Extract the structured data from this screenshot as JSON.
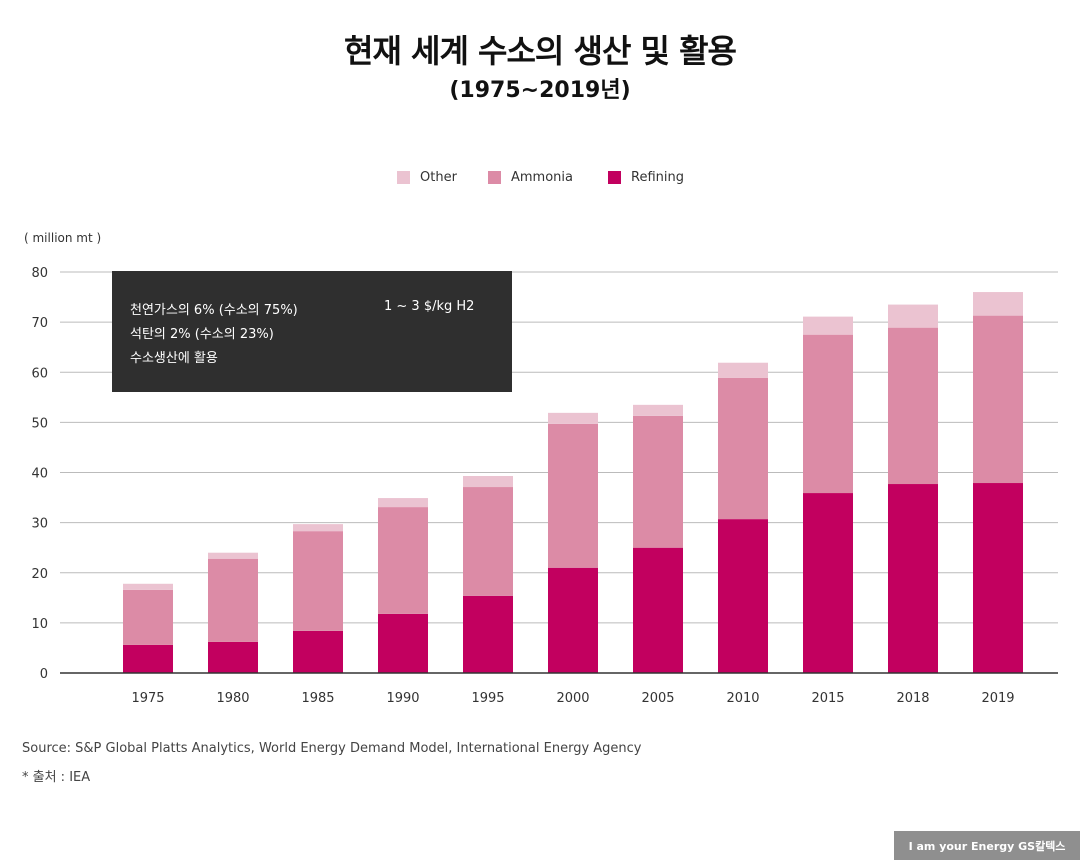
{
  "chart_data": {
    "type": "bar",
    "stacked": true,
    "title": "현재 세계 수소의 생산 및 활용",
    "subtitle": "(1975~2019년)",
    "ylabel": "( million mt )",
    "xlabel": "",
    "ylim": [
      0,
      80
    ],
    "yticks": [
      0,
      10,
      20,
      30,
      40,
      50,
      60,
      70,
      80
    ],
    "grid": true,
    "legend_position": "top-center",
    "categories": [
      "1975",
      "1980",
      "1985",
      "1990",
      "1995",
      "2000",
      "2005",
      "2010",
      "2015",
      "2018",
      "2019"
    ],
    "series": [
      {
        "name": "Refining",
        "color": "#c2005f",
        "values": [
          5.6,
          6.2,
          8.4,
          11.8,
          15.4,
          21.0,
          25.0,
          30.7,
          35.9,
          37.7,
          37.9
        ]
      },
      {
        "name": "Ammonia",
        "color": "#dc8ba6",
        "values": [
          11.0,
          16.6,
          19.9,
          21.3,
          21.7,
          28.7,
          26.3,
          28.2,
          31.6,
          31.2,
          33.4
        ]
      },
      {
        "name": "Other",
        "color": "#ebc3d1",
        "values": [
          1.2,
          1.2,
          1.4,
          1.8,
          2.2,
          2.2,
          2.2,
          3.0,
          3.6,
          4.6,
          4.7
        ]
      }
    ],
    "legend_order": [
      "Other",
      "Ammonia",
      "Refining"
    ],
    "annotation": {
      "lines": [
        "천연가스의 6% (수소의 75%)",
        "석탄의 2% (수소의 23%)",
        "수소생산에 활용"
      ],
      "side": "1 ~ 3 $/kg H2",
      "color": "#2f2f2f"
    }
  },
  "footer": {
    "source": "Source: S&P Global Platts Analytics, World Energy Demand Model, International Energy Agency",
    "note": "* 출처 : IEA",
    "logo": "I am your Energy  GS칼텍스"
  }
}
